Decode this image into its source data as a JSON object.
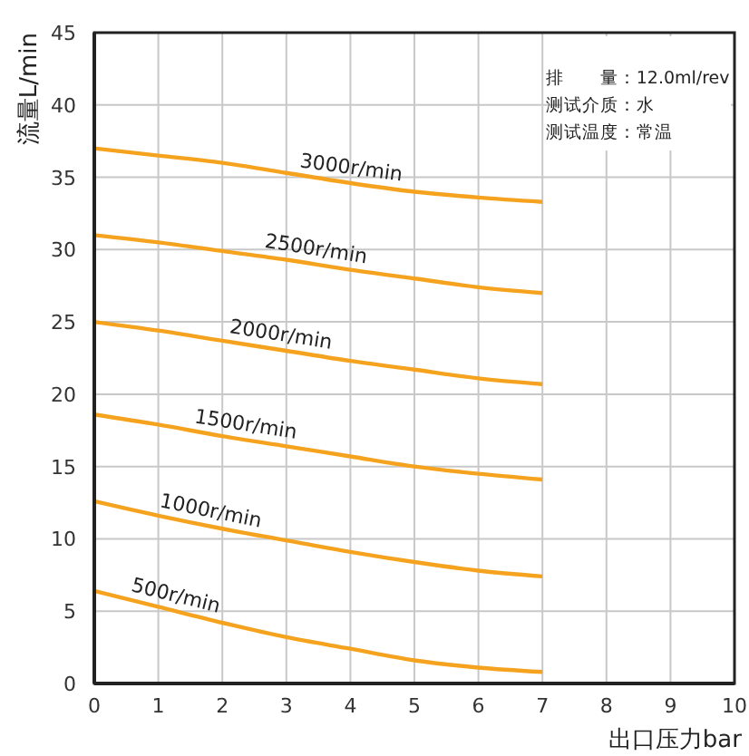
{
  "chart_data": {
    "type": "line",
    "xlabel": "出口压力bar",
    "ylabel": "流量L/min",
    "x": [
      0,
      1,
      2,
      3,
      4,
      5,
      6,
      7
    ],
    "xlim": [
      0,
      10
    ],
    "xticks": [
      0,
      1,
      2,
      3,
      4,
      5,
      6,
      7,
      8,
      9,
      10
    ],
    "ylim": [
      0,
      45
    ],
    "yticks": [
      0,
      5,
      10,
      15,
      20,
      25,
      30,
      35,
      40,
      45
    ],
    "grid": true,
    "marker": "none",
    "line_style": "solid",
    "series": [
      {
        "name": "3000r/min",
        "color": "#f5a31f",
        "values": [
          37,
          36.5,
          36,
          35.3,
          34.6,
          34,
          33.6,
          33.3
        ]
      },
      {
        "name": "2500r/min",
        "color": "#f5a31f",
        "values": [
          31,
          30.5,
          29.9,
          29.3,
          28.6,
          28,
          27.4,
          27
        ]
      },
      {
        "name": "2000r/min",
        "color": "#f5a31f",
        "values": [
          25,
          24.4,
          23.7,
          23,
          22.3,
          21.7,
          21.1,
          20.7
        ]
      },
      {
        "name": "1500r/min",
        "color": "#f5a31f",
        "values": [
          18.6,
          17.9,
          17.1,
          16.4,
          15.7,
          15,
          14.5,
          14.1
        ]
      },
      {
        "name": "1000r/min",
        "color": "#f5a31f",
        "values": [
          12.6,
          11.6,
          10.7,
          9.9,
          9.1,
          8.4,
          7.8,
          7.4
        ]
      },
      {
        "name": "500r/min",
        "color": "#f5a31f",
        "values": [
          6.4,
          5.3,
          4.2,
          3.2,
          2.4,
          1.6,
          1.1,
          0.8
        ]
      }
    ],
    "annotations": [
      "排　　量：12.0ml/rev",
      "测试介质：水",
      "测试温度：常温"
    ]
  }
}
